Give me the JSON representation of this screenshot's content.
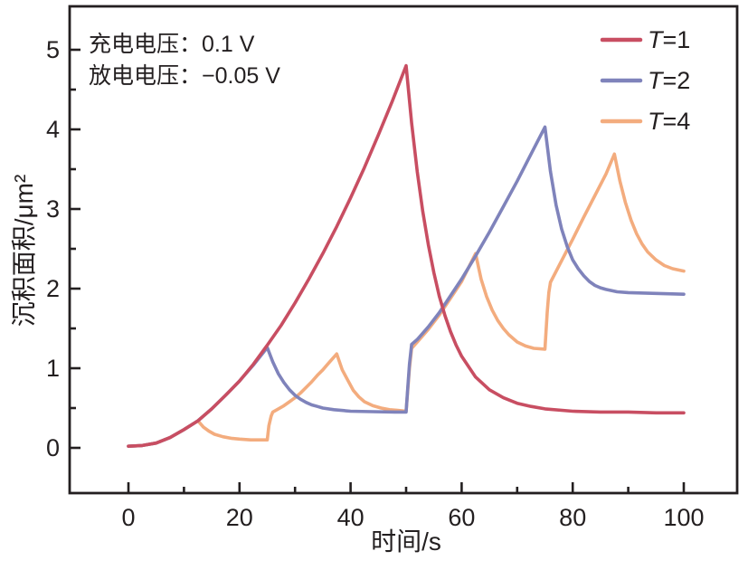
{
  "chart_data": {
    "type": "line",
    "title": "",
    "xlabel": "时间/s",
    "ylabel": "沉积面积/μm²",
    "xlim": [
      0,
      100
    ],
    "ylim": [
      0,
      5
    ],
    "x_ticks": [
      0,
      20,
      40,
      60,
      80,
      100
    ],
    "x_minor_ticks": [
      10,
      30,
      50,
      70,
      90
    ],
    "y_ticks": [
      0,
      1,
      2,
      3,
      4,
      5
    ],
    "y_minor_ticks": [
      0.5,
      1.5,
      2.5,
      3.5,
      4.5
    ],
    "grid": false,
    "legend_position": "top-right-inside",
    "annotation": {
      "line1": "充电电压：0.1 V",
      "line2": "放电电压：−0.05 V"
    },
    "series": [
      {
        "name": "T=1",
        "color": "#C84E62",
        "points": [
          [
            0,
            0.02
          ],
          [
            2.5,
            0.03
          ],
          [
            5,
            0.06
          ],
          [
            7.5,
            0.13
          ],
          [
            10,
            0.23
          ],
          [
            12.5,
            0.34
          ],
          [
            15,
            0.49
          ],
          [
            17.5,
            0.66
          ],
          [
            20,
            0.84
          ],
          [
            22.5,
            1.05
          ],
          [
            25,
            1.29
          ],
          [
            27.5,
            1.54
          ],
          [
            30,
            1.82
          ],
          [
            32.5,
            2.12
          ],
          [
            35,
            2.44
          ],
          [
            37.5,
            2.78
          ],
          [
            40,
            3.14
          ],
          [
            42.5,
            3.52
          ],
          [
            45,
            3.93
          ],
          [
            47.5,
            4.35
          ],
          [
            50,
            4.8
          ],
          [
            51,
            4.08
          ],
          [
            52,
            3.47
          ],
          [
            53,
            2.97
          ],
          [
            54,
            2.55
          ],
          [
            55,
            2.2
          ],
          [
            56,
            1.9
          ],
          [
            57,
            1.66
          ],
          [
            58,
            1.46
          ],
          [
            59,
            1.29
          ],
          [
            60,
            1.15
          ],
          [
            62.5,
            0.89
          ],
          [
            65,
            0.73
          ],
          [
            67.5,
            0.63
          ],
          [
            70,
            0.56
          ],
          [
            72.5,
            0.52
          ],
          [
            75,
            0.49
          ],
          [
            80,
            0.46
          ],
          [
            85,
            0.45
          ],
          [
            90,
            0.45
          ],
          [
            95,
            0.44
          ],
          [
            100,
            0.44
          ]
        ]
      },
      {
        "name": "T=2",
        "color": "#7F83BB",
        "points": [
          [
            0,
            0.02
          ],
          [
            2.5,
            0.03
          ],
          [
            5,
            0.06
          ],
          [
            7.5,
            0.13
          ],
          [
            10,
            0.23
          ],
          [
            12.5,
            0.34
          ],
          [
            15,
            0.49
          ],
          [
            17.5,
            0.66
          ],
          [
            20,
            0.84
          ],
          [
            22.5,
            1.04
          ],
          [
            25,
            1.26
          ],
          [
            26,
            1.08
          ],
          [
            27,
            0.93
          ],
          [
            28,
            0.82
          ],
          [
            29,
            0.73
          ],
          [
            30,
            0.66
          ],
          [
            31,
            0.61
          ],
          [
            32,
            0.57
          ],
          [
            33,
            0.54
          ],
          [
            34,
            0.52
          ],
          [
            35,
            0.5
          ],
          [
            37,
            0.48
          ],
          [
            40,
            0.46
          ],
          [
            44,
            0.455
          ],
          [
            48,
            0.45
          ],
          [
            50,
            0.45
          ],
          [
            50.3,
            0.75
          ],
          [
            50.6,
            1.05
          ],
          [
            51,
            1.3
          ],
          [
            52,
            1.36
          ],
          [
            54,
            1.52
          ],
          [
            56,
            1.7
          ],
          [
            58,
            1.91
          ],
          [
            60,
            2.12
          ],
          [
            62.5,
            2.41
          ],
          [
            65,
            2.71
          ],
          [
            67.5,
            3.03
          ],
          [
            70,
            3.35
          ],
          [
            72.5,
            3.69
          ],
          [
            75,
            4.03
          ],
          [
            76,
            3.47
          ],
          [
            77,
            3.05
          ],
          [
            78,
            2.75
          ],
          [
            79,
            2.53
          ],
          [
            80,
            2.36
          ],
          [
            81,
            2.25
          ],
          [
            82,
            2.16
          ],
          [
            83,
            2.09
          ],
          [
            84,
            2.04
          ],
          [
            85,
            2.01
          ],
          [
            86,
            1.99
          ],
          [
            88,
            1.96
          ],
          [
            90,
            1.95
          ],
          [
            95,
            1.94
          ],
          [
            100,
            1.93
          ]
        ]
      },
      {
        "name": "T=4",
        "color": "#F3AC7E",
        "points": [
          [
            0,
            0.02
          ],
          [
            2.5,
            0.03
          ],
          [
            5,
            0.06
          ],
          [
            7.5,
            0.13
          ],
          [
            10,
            0.23
          ],
          [
            12.5,
            0.34
          ],
          [
            13.5,
            0.26
          ],
          [
            14.5,
            0.21
          ],
          [
            15.5,
            0.17
          ],
          [
            17,
            0.14
          ],
          [
            18.5,
            0.12
          ],
          [
            20,
            0.11
          ],
          [
            22,
            0.1
          ],
          [
            25,
            0.1
          ],
          [
            25.3,
            0.28
          ],
          [
            25.7,
            0.4
          ],
          [
            26,
            0.45
          ],
          [
            27,
            0.49
          ],
          [
            28,
            0.53
          ],
          [
            29,
            0.58
          ],
          [
            30,
            0.63
          ],
          [
            31,
            0.69
          ],
          [
            32,
            0.76
          ],
          [
            33,
            0.83
          ],
          [
            34,
            0.91
          ],
          [
            35,
            0.98
          ],
          [
            36,
            1.06
          ],
          [
            37.5,
            1.18
          ],
          [
            38.5,
            0.98
          ],
          [
            39.5,
            0.85
          ],
          [
            40.5,
            0.72
          ],
          [
            41.5,
            0.64
          ],
          [
            42.5,
            0.58
          ],
          [
            44,
            0.53
          ],
          [
            45.5,
            0.5
          ],
          [
            47,
            0.48
          ],
          [
            48.5,
            0.47
          ],
          [
            50,
            0.46
          ],
          [
            50.3,
            0.72
          ],
          [
            50.6,
            1.0
          ],
          [
            51,
            1.25
          ],
          [
            52,
            1.33
          ],
          [
            54,
            1.49
          ],
          [
            56,
            1.67
          ],
          [
            58,
            1.88
          ],
          [
            60,
            2.09
          ],
          [
            62.5,
            2.44
          ],
          [
            63.5,
            2.12
          ],
          [
            64.5,
            1.9
          ],
          [
            65.5,
            1.73
          ],
          [
            66.5,
            1.6
          ],
          [
            67.5,
            1.5
          ],
          [
            68.5,
            1.42
          ],
          [
            70,
            1.33
          ],
          [
            71.5,
            1.28
          ],
          [
            73,
            1.25
          ],
          [
            75,
            1.24
          ],
          [
            75.4,
            1.7
          ],
          [
            75.7,
            1.95
          ],
          [
            76,
            2.08
          ],
          [
            78,
            2.35
          ],
          [
            80,
            2.62
          ],
          [
            82,
            2.9
          ],
          [
            84,
            3.17
          ],
          [
            86,
            3.44
          ],
          [
            87.5,
            3.69
          ],
          [
            88.5,
            3.35
          ],
          [
            89.5,
            3.08
          ],
          [
            90.5,
            2.86
          ],
          [
            91.5,
            2.69
          ],
          [
            92.5,
            2.56
          ],
          [
            93.5,
            2.46
          ],
          [
            95,
            2.36
          ],
          [
            96.5,
            2.29
          ],
          [
            98,
            2.25
          ],
          [
            100,
            2.22
          ]
        ]
      }
    ]
  },
  "colors": {
    "axis": "#231F20",
    "background": "#FFFFFF",
    "series_t1": "#C84E62",
    "series_t2": "#7F83BB",
    "series_t4": "#F3AC7E"
  }
}
